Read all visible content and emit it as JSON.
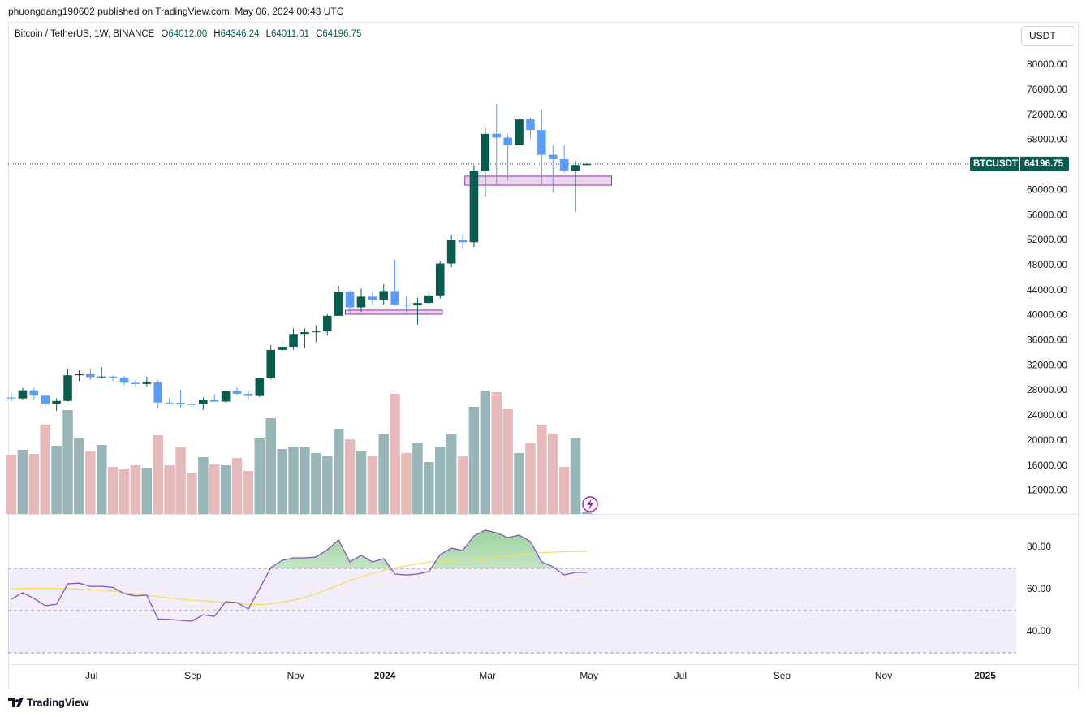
{
  "page": {
    "publisher_line": "phuongdang190602 published on TradingView.com, May 06, 2024 00:43 UTC",
    "brand": "TradingView",
    "currency_button": "USDT"
  },
  "chart_data": [
    {
      "type": "candlestick",
      "title": "Bitcoin / TetherUS, 1W, BINANCE",
      "header_ohlc": [
        {
          "name": "O",
          "label": "64012.00"
        },
        {
          "name": "H",
          "label": "64346.24"
        },
        {
          "name": "L",
          "label": "64011.01"
        },
        {
          "name": "C",
          "label": "64196.75"
        }
      ],
      "last_price": {
        "symbol": "BTCUSDT",
        "value": 64196.75,
        "label": "64196.75",
        "color": "#0b5c4e"
      },
      "xlim": [
        -0.29,
        89.06
      ],
      "ylim": [
        8300,
        86480
      ],
      "yticks": [
        {
          "value": 12000,
          "label": "12000.00"
        },
        {
          "value": 16000,
          "label": "16000.00"
        },
        {
          "value": 20000,
          "label": "20000.00"
        },
        {
          "value": 24000,
          "label": "24000.00"
        },
        {
          "value": 28000,
          "label": "28000.00"
        },
        {
          "value": 32000,
          "label": "32000.00"
        },
        {
          "value": 36000,
          "label": "36000.00"
        },
        {
          "value": 40000,
          "label": "40000.00"
        },
        {
          "value": 44000,
          "label": "44000.00"
        },
        {
          "value": 48000,
          "label": "48000.00"
        },
        {
          "value": 52000,
          "label": "52000.00"
        },
        {
          "value": 56000,
          "label": "56000.00"
        },
        {
          "value": 60000,
          "label": "60000.00"
        },
        {
          "value": 64000,
          "label": "64000.00"
        },
        {
          "value": 68000,
          "label": "68000.00"
        },
        {
          "value": 72000,
          "label": "72000.00"
        },
        {
          "value": 76000,
          "label": "76000.00"
        },
        {
          "value": 80000,
          "label": "80000.00"
        }
      ],
      "grid": false,
      "up_color": "#0b5c4e",
      "down_color": "#5b9cf6",
      "open": [
        26900,
        26750,
        28050,
        27200,
        25900,
        26350,
        30450,
        30600,
        30150,
        30250,
        30100,
        29250,
        29050,
        29300,
        26100,
        26050,
        25850,
        25800,
        26550,
        26250,
        27950,
        27500,
        27150,
        29950,
        34500,
        35000,
        37050,
        37350,
        37450,
        39950,
        43800,
        41300,
        43000,
        42500,
        43900,
        41700,
        41600,
        42000,
        43200,
        48300,
        52100,
        51700,
        63100,
        69000,
        68400,
        67200,
        71300,
        69600,
        65650,
        64950,
        63100,
        64012
      ],
      "high": [
        27600,
        28450,
        28450,
        27350,
        26800,
        31400,
        31250,
        31500,
        31800,
        30400,
        30350,
        29700,
        30250,
        29700,
        26800,
        28150,
        26450,
        26900,
        27500,
        28050,
        28600,
        27850,
        30000,
        35300,
        36000,
        37950,
        37950,
        38400,
        40200,
        44700,
        44000,
        44300,
        43700,
        45000,
        48950,
        43000,
        42800,
        43900,
        48600,
        52800,
        52950,
        64000,
        69950,
        73800,
        68900,
        71750,
        71600,
        72800,
        67200,
        67250,
        64750,
        64346.24
      ],
      "low": [
        26300,
        26550,
        26500,
        25350,
        24800,
        26250,
        29500,
        29700,
        29950,
        29500,
        28850,
        28600,
        28700,
        25150,
        25800,
        25350,
        25350,
        24900,
        26350,
        26000,
        27200,
        26550,
        26950,
        29800,
        34100,
        34500,
        34800,
        35700,
        36800,
        39950,
        40200,
        40550,
        41700,
        41600,
        41500,
        40550,
        38550,
        41800,
        42700,
        47700,
        50600,
        50900,
        59000,
        60800,
        61500,
        66600,
        68300,
        60700,
        59600,
        62800,
        56550,
        64011.01
      ],
      "close": [
        26750,
        28050,
        27200,
        25900,
        26350,
        30450,
        30600,
        30150,
        30250,
        30100,
        29250,
        29050,
        29300,
        26100,
        26050,
        25850,
        25800,
        26550,
        26250,
        27950,
        27500,
        27150,
        29950,
        34500,
        35000,
        37050,
        37350,
        37450,
        39950,
        43800,
        41300,
        43000,
        42500,
        43900,
        41700,
        41600,
        42000,
        43200,
        48300,
        52100,
        51700,
        63100,
        69000,
        68400,
        67200,
        71300,
        69600,
        65650,
        64950,
        63100,
        64012,
        64196.75
      ],
      "volume": [
        182500,
        197500,
        185000,
        275000,
        210000,
        320000,
        232500,
        192500,
        212500,
        145000,
        137500,
        150000,
        142500,
        242500,
        150000,
        205000,
        125000,
        175000,
        152500,
        150000,
        172500,
        132500,
        232500,
        295000,
        200000,
        207500,
        205000,
        187500,
        177500,
        262500,
        230000,
        195000,
        180000,
        245000,
        370000,
        187500,
        217500,
        160000,
        207500,
        245000,
        177500,
        330000,
        377500,
        375000,
        322500,
        187500,
        217500,
        275000,
        247500,
        145000,
        235000,
        5000
      ],
      "volume_ylim": [
        0,
        400000
      ],
      "volume_up_color": "#98b5b7",
      "volume_down_color": "#e6b9bb",
      "zones": [
        {
          "from": 29.6,
          "to": 38.2,
          "low": 40200,
          "high": 40850,
          "color": "#9c27b0"
        },
        {
          "from": 40.2,
          "to": 53.2,
          "low": 60800,
          "high": 62240,
          "color": "#9c27b0"
        }
      ]
    },
    {
      "type": "line",
      "xlim": [
        -0.29,
        89.06
      ],
      "xticks": [
        {
          "value": 7.1,
          "label": "Jul"
        },
        {
          "value": 16.1,
          "label": "Sep"
        },
        {
          "value": 25.2,
          "label": "Nov"
        },
        {
          "value": 33.1,
          "label": "2024"
        },
        {
          "value": 42.2,
          "label": "Mar"
        },
        {
          "value": 51.2,
          "label": "May"
        },
        {
          "value": 59.3,
          "label": "Jul"
        },
        {
          "value": 68.3,
          "label": "Sep"
        },
        {
          "value": 77.3,
          "label": "Nov"
        },
        {
          "value": 86.3,
          "label": "2025"
        }
      ],
      "ylim": [
        24.6,
        95.4
      ],
      "yticks": [
        {
          "value": 80,
          "label": "80.00"
        },
        {
          "value": 60,
          "label": "60.00"
        },
        {
          "value": 40,
          "label": "40.00"
        }
      ],
      "bands": {
        "upper": 70,
        "middle": 50,
        "lower": 30,
        "color": "#7e57c2"
      },
      "overbought_color": "#4caf50",
      "series": [
        {
          "color": "#7e57c2",
          "values": [
            55.4,
            58.5,
            55.8,
            52.3,
            53.0,
            62.7,
            63.0,
            61.5,
            61.5,
            61.0,
            58.0,
            57.0,
            57.3,
            46.0,
            45.8,
            45.4,
            45.0,
            48.0,
            47.3,
            54.2,
            53.8,
            50.8,
            60.4,
            70.4,
            73.8,
            75.0,
            75.0,
            75.4,
            78.8,
            83.5,
            73.1,
            76.2,
            73.1,
            74.6,
            67.3,
            66.9,
            67.3,
            68.5,
            76.5,
            79.6,
            78.5,
            85.4,
            88.1,
            86.9,
            84.6,
            85.8,
            82.7,
            73.1,
            70.8,
            66.9,
            68.1,
            68.1
          ]
        },
        {
          "color": "#f3dc6b",
          "values": [
            60.4,
            60.5,
            60.6,
            60.6,
            60.5,
            60.4,
            60.2,
            60.0,
            59.6,
            59.2,
            58.6,
            58.0,
            57.3,
            56.6,
            56.0,
            55.4,
            55.0,
            54.6,
            54.2,
            53.8,
            53.4,
            53.0,
            52.8,
            53.2,
            54.0,
            55.0,
            56.2,
            58.0,
            60.0,
            62.2,
            64.2,
            66.0,
            67.6,
            69.0,
            70.2,
            71.2,
            72.2,
            73.0,
            73.6,
            73.8,
            74.0,
            74.2,
            74.6,
            75.2,
            75.8,
            76.4,
            77.0,
            77.4,
            77.7,
            77.9,
            78.0,
            78.1
          ]
        }
      ]
    }
  ]
}
